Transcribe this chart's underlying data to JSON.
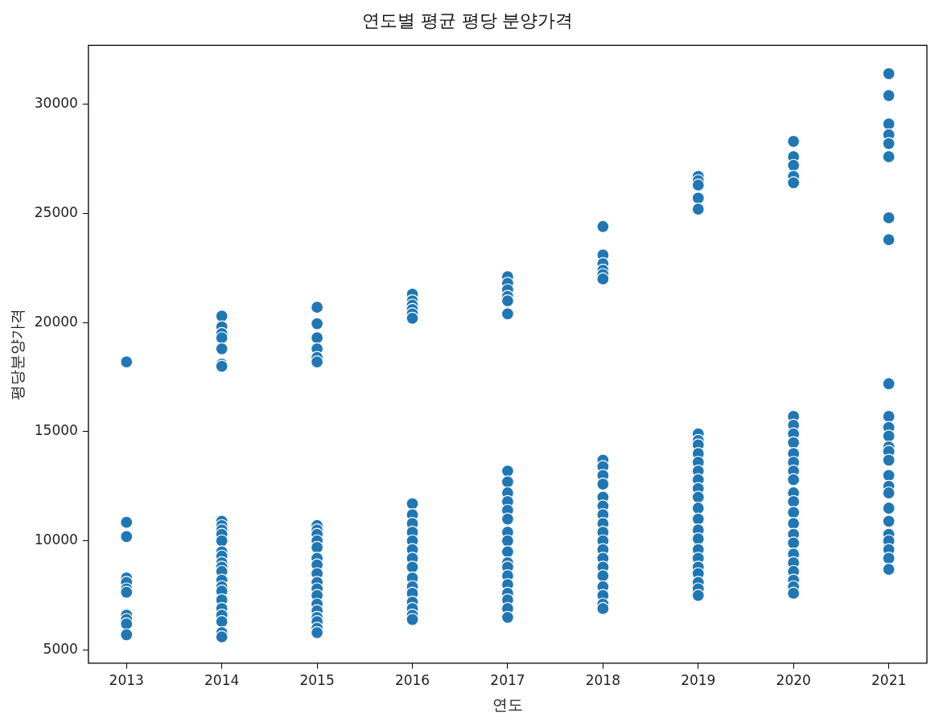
{
  "chart_data": {
    "type": "scatter",
    "title": "연도별 평균 평당 분양가격",
    "xlabel": "연도",
    "ylabel": "평당분양가격",
    "xlim": [
      2012.6,
      2021.4
    ],
    "xticks": [
      2013,
      2014,
      2015,
      2016,
      2017,
      2018,
      2019,
      2020,
      2021
    ],
    "ylim": [
      4400,
      32700
    ],
    "yticks": [
      5000,
      10000,
      15000,
      20000,
      25000,
      30000
    ],
    "grid": false,
    "legend": false,
    "marker": "circle",
    "series": [
      {
        "color": "#1f77b4",
        "x": [
          2013,
          2013,
          2013,
          2013,
          2013,
          2013,
          2013,
          2013,
          2013,
          2013,
          2013,
          2014,
          2014,
          2014,
          2014,
          2014,
          2014,
          2014,
          2014,
          2014,
          2014,
          2014,
          2014,
          2014,
          2014,
          2014,
          2014,
          2014,
          2014,
          2014,
          2014,
          2014,
          2014,
          2014,
          2014,
          2014,
          2014,
          2015,
          2015,
          2015,
          2015,
          2015,
          2015,
          2015,
          2015,
          2015,
          2015,
          2015,
          2015,
          2015,
          2015,
          2015,
          2015,
          2015,
          2015,
          2015,
          2015,
          2015,
          2015,
          2015,
          2016,
          2016,
          2016,
          2016,
          2016,
          2016,
          2016,
          2016,
          2016,
          2016,
          2016,
          2016,
          2016,
          2016,
          2016,
          2016,
          2016,
          2016,
          2016,
          2016,
          2016,
          2017,
          2017,
          2017,
          2017,
          2017,
          2017,
          2017,
          2017,
          2017,
          2017,
          2017,
          2017,
          2017,
          2017,
          2017,
          2017,
          2017,
          2017,
          2017,
          2017,
          2017,
          2017,
          2017,
          2018,
          2018,
          2018,
          2018,
          2018,
          2018,
          2018,
          2018,
          2018,
          2018,
          2018,
          2018,
          2018,
          2018,
          2018,
          2018,
          2018,
          2018,
          2018,
          2018,
          2018,
          2018,
          2018,
          2018,
          2019,
          2019,
          2019,
          2019,
          2019,
          2019,
          2019,
          2019,
          2019,
          2019,
          2019,
          2019,
          2019,
          2019,
          2019,
          2019,
          2019,
          2019,
          2019,
          2019,
          2019,
          2019,
          2019,
          2019,
          2019,
          2020,
          2020,
          2020,
          2020,
          2020,
          2020,
          2020,
          2020,
          2020,
          2020,
          2020,
          2020,
          2020,
          2020,
          2020,
          2020,
          2020,
          2020,
          2020,
          2020,
          2020,
          2020,
          2020,
          2020,
          2020,
          2021,
          2021,
          2021,
          2021,
          2021,
          2021,
          2021,
          2021,
          2021,
          2021,
          2021,
          2021,
          2021,
          2021,
          2021,
          2021,
          2021,
          2021,
          2021,
          2021,
          2021,
          2021,
          2021,
          2021,
          2021
        ],
        "values": [
          18200,
          10850,
          10200,
          8300,
          8100,
          7800,
          7650,
          6600,
          6400,
          6200,
          5700,
          20300,
          19800,
          19500,
          19300,
          18800,
          18100,
          18000,
          10900,
          10700,
          10500,
          10300,
          10000,
          9500,
          9300,
          9000,
          8800,
          8600,
          8200,
          7900,
          7700,
          7300,
          6900,
          6600,
          6300,
          5800,
          5600,
          20700,
          19950,
          19300,
          18800,
          18400,
          18200,
          10700,
          10500,
          10300,
          10000,
          9700,
          9200,
          8900,
          8500,
          8100,
          7800,
          7500,
          7100,
          6800,
          6500,
          6300,
          6000,
          5800,
          21300,
          21000,
          20800,
          20600,
          20400,
          20200,
          11700,
          11200,
          10800,
          10400,
          10000,
          9600,
          9200,
          8800,
          8300,
          7900,
          7600,
          7200,
          6900,
          6600,
          6400,
          22100,
          21800,
          21500,
          21200,
          21000,
          20400,
          13200,
          12700,
          12200,
          11800,
          11400,
          11000,
          10400,
          10000,
          9500,
          9000,
          8800,
          8400,
          8000,
          7600,
          7300,
          6900,
          6500,
          24400,
          23100,
          22700,
          22400,
          22200,
          22000,
          13700,
          13400,
          13000,
          12600,
          12000,
          11600,
          11200,
          10800,
          10400,
          10000,
          9600,
          9200,
          8800,
          8400,
          7900,
          7500,
          7100,
          6900,
          26700,
          26500,
          26300,
          25700,
          25200,
          14900,
          14600,
          14400,
          14000,
          13600,
          13200,
          12800,
          12400,
          12000,
          11500,
          11000,
          10500,
          10100,
          9600,
          9200,
          8800,
          8500,
          8100,
          7800,
          7500,
          28300,
          27600,
          27200,
          26700,
          26400,
          15700,
          15300,
          14900,
          14500,
          14000,
          13600,
          13200,
          12800,
          12200,
          11800,
          11300,
          10800,
          10300,
          9900,
          9400,
          9000,
          8600,
          8200,
          7900,
          7600,
          31400,
          30400,
          29100,
          28600,
          28200,
          27600,
          24800,
          23800,
          17200,
          15700,
          15200,
          14800,
          14300,
          14100,
          13700,
          13000,
          12500,
          12200,
          11500,
          10900,
          10300,
          10000,
          9600,
          9200,
          8700
        ]
      }
    ]
  }
}
